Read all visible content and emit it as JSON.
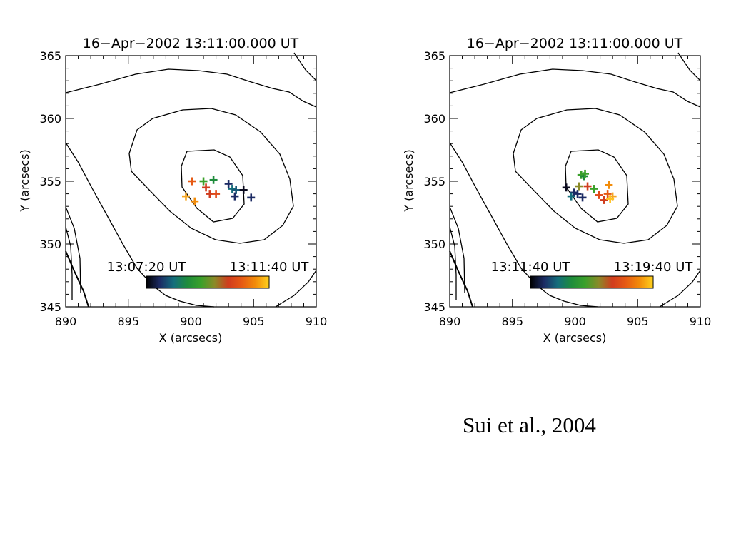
{
  "citation": "Sui et al., 2004",
  "colors": {
    "axis": "#000000",
    "contour": "#000000",
    "colormap": [
      "#000000",
      "#1c2b64",
      "#146e7c",
      "#1e8c3c",
      "#3aa02a",
      "#8a8a28",
      "#d03c1e",
      "#e65a14",
      "#f28c0a",
      "#ffd21e"
    ]
  },
  "chart_data": [
    {
      "type": "scatter",
      "title": "16−Apr−2002 13:11:00.000 UT",
      "xlabel": "X (arcsecs)",
      "ylabel": "Y (arcsecs)",
      "xlim": [
        890,
        910
      ],
      "ylim": [
        345,
        365
      ],
      "x_ticks": [
        "890",
        "895",
        "900",
        "905",
        "910"
      ],
      "y_ticks": [
        "345",
        "350",
        "355",
        "360",
        "365"
      ],
      "grid": false,
      "colorbar": {
        "start_label": "13:07:20 UT",
        "end_label": "13:11:40 UT"
      },
      "markers": [
        {
          "x": 900.1,
          "y": 355.0,
          "color": "#e65a14"
        },
        {
          "x": 901.0,
          "y": 355.0,
          "color": "#3aa02a"
        },
        {
          "x": 901.8,
          "y": 355.1,
          "color": "#1e8c3c"
        },
        {
          "x": 901.2,
          "y": 354.5,
          "color": "#d03c1e"
        },
        {
          "x": 901.5,
          "y": 354.0,
          "color": "#d03c1e"
        },
        {
          "x": 902.0,
          "y": 354.0,
          "color": "#e04a18"
        },
        {
          "x": 899.6,
          "y": 353.8,
          "color": "#f5a623"
        },
        {
          "x": 900.3,
          "y": 353.4,
          "color": "#f28c0a"
        },
        {
          "x": 903.0,
          "y": 354.8,
          "color": "#1c2b64"
        },
        {
          "x": 903.3,
          "y": 354.4,
          "color": "#146e7c"
        },
        {
          "x": 903.6,
          "y": 354.3,
          "color": "#1a5a78"
        },
        {
          "x": 904.2,
          "y": 354.3,
          "color": "#0a0a1e"
        },
        {
          "x": 903.5,
          "y": 353.8,
          "color": "#1c2b64"
        },
        {
          "x": 904.8,
          "y": 353.7,
          "color": "#1c2b64"
        }
      ]
    },
    {
      "type": "scatter",
      "title": "16−Apr−2002 13:11:00.000 UT",
      "xlabel": "X (arcsecs)",
      "ylabel": "Y (arcsecs)",
      "xlim": [
        890,
        910
      ],
      "ylim": [
        345,
        365
      ],
      "x_ticks": [
        "890",
        "895",
        "900",
        "905",
        "910"
      ],
      "y_ticks": [
        "345",
        "350",
        "355",
        "360",
        "365"
      ],
      "grid": false,
      "colorbar": {
        "start_label": "13:11:40 UT",
        "end_label": "13:19:40 UT"
      },
      "markers": [
        {
          "x": 899.3,
          "y": 354.5,
          "color": "#0a0a1e"
        },
        {
          "x": 899.9,
          "y": 354.1,
          "color": "#1c2b64"
        },
        {
          "x": 899.7,
          "y": 353.8,
          "color": "#146e7c"
        },
        {
          "x": 900.2,
          "y": 354.0,
          "color": "#1c2b64"
        },
        {
          "x": 900.6,
          "y": 353.7,
          "color": "#1c2b64"
        },
        {
          "x": 900.5,
          "y": 355.5,
          "color": "#3aa02a"
        },
        {
          "x": 900.7,
          "y": 355.4,
          "color": "#1e8c3c"
        },
        {
          "x": 900.8,
          "y": 355.6,
          "color": "#3aa02a"
        },
        {
          "x": 900.3,
          "y": 354.6,
          "color": "#8a8a28"
        },
        {
          "x": 901.0,
          "y": 354.6,
          "color": "#d03c1e"
        },
        {
          "x": 901.5,
          "y": 354.4,
          "color": "#3aa02a"
        },
        {
          "x": 901.9,
          "y": 353.9,
          "color": "#e04a18"
        },
        {
          "x": 902.3,
          "y": 353.5,
          "color": "#d03c1e"
        },
        {
          "x": 902.6,
          "y": 354.0,
          "color": "#e65a14"
        },
        {
          "x": 902.7,
          "y": 354.7,
          "color": "#f28c0a"
        },
        {
          "x": 903.0,
          "y": 353.8,
          "color": "#f5a623"
        },
        {
          "x": 902.8,
          "y": 353.6,
          "color": "#ffc21e"
        }
      ]
    }
  ]
}
